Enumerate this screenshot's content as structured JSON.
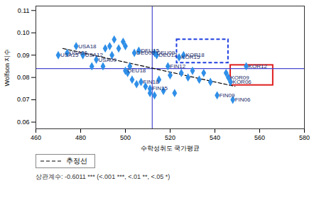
{
  "chart_data": {
    "type": "scatter",
    "xlabel": "수학성취도 국가평균",
    "ylabel": "Wolfson 지수",
    "caption": "상관계수: -0.6011 *** (<.001 ***, <.01 **, <.05 *)",
    "xlim": [
      460,
      580
    ],
    "xticks": [
      460,
      480,
      500,
      520,
      540,
      560,
      580
    ],
    "ylim": [
      0.057,
      0.112
    ],
    "yticks": [
      0.06,
      0.07,
      0.08,
      0.09,
      {
        "value": 0.1,
        "label": "0.10"
      },
      0.11
    ],
    "grid": false,
    "color": "#2f8fe8",
    "marker": "diamond",
    "x": [
      474,
      487,
      481,
      470,
      478,
      504,
      513,
      514,
      506,
      500,
      548,
      541,
      519,
      511,
      507,
      547,
      546,
      554,
      524,
      526,
      485,
      490,
      491,
      493,
      495,
      497,
      494,
      500,
      502,
      503,
      505,
      509,
      511,
      513,
      515,
      517,
      520,
      522,
      525,
      528,
      530,
      533,
      535,
      538,
      545,
      499,
      501
    ],
    "values": [
      0.091,
      0.088,
      0.09,
      0.09,
      0.094,
      0.091,
      0.091,
      0.09,
      0.092,
      0.083,
      0.07,
      0.072,
      0.085,
      0.075,
      0.078,
      0.078,
      0.08,
      0.085,
      0.089,
      0.09,
      0.085,
      0.085,
      0.093,
      0.094,
      0.097,
      0.093,
      0.09,
      0.094,
      0.085,
      0.079,
      0.077,
      0.076,
      0.073,
      0.072,
      0.079,
      0.074,
      0.081,
      0.073,
      0.082,
      0.08,
      0.083,
      0.079,
      0.082,
      0.078,
      0.082,
      0.096,
      0.082
    ],
    "point_labels": [
      "USA06",
      "USA09",
      "USA12",
      "USA15",
      "USA18",
      "DEU06",
      "DEU09",
      "DEU12",
      "DEU15",
      "DEU18",
      "FIN06",
      "FIN09",
      "FIN12",
      "FIN15",
      "FIN18",
      "KOR06",
      "KOR09",
      "KOR12",
      "KOR15",
      "KOR18",
      null,
      null,
      null,
      null,
      null,
      null,
      null,
      null,
      null,
      null,
      null,
      null,
      null,
      null,
      null,
      null,
      null,
      null,
      null,
      null,
      null,
      null,
      null,
      null,
      null,
      null,
      null
    ],
    "reference_lines": {
      "x": 512,
      "y": 0.084,
      "color": "#4a4ad0"
    },
    "trend_line": {
      "name": "추정선",
      "x": [
        472,
        549
      ],
      "values": [
        0.093,
        0.076
      ],
      "color": "#000000",
      "line_style": "dashed"
    },
    "highlight_boxes": [
      {
        "x": [
          523,
          546
        ],
        "values": [
          0.0865,
          0.097
        ],
        "color": "#2040e0",
        "line_style": "dashed"
      },
      {
        "x": [
          547,
          566
        ],
        "values": [
          0.0765,
          0.0855
        ],
        "color": "#e02020",
        "line_style": "solid"
      }
    ],
    "legend": "bottom-left"
  }
}
